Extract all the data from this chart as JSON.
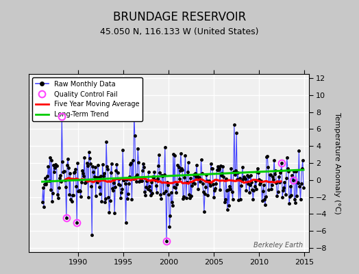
{
  "title": "BRUNDAGE RESERVOIR",
  "subtitle": "45.050 N, 116.133 W (United States)",
  "ylabel": "Temperature Anomaly (°C)",
  "watermark": "Berkeley Earth",
  "ylim": [
    -8.5,
    12.5
  ],
  "yticks": [
    -8,
    -6,
    -4,
    -2,
    0,
    2,
    4,
    6,
    8,
    10,
    12
  ],
  "xlim": [
    1984.5,
    2015.5
  ],
  "xticks": [
    1990,
    1995,
    2000,
    2005,
    2010,
    2015
  ],
  "raw_color": "#4444ff",
  "ma_color": "#ff0000",
  "trend_color": "#00cc00",
  "qc_color": "#ff44ff",
  "plot_bg": "#f0f0f0",
  "fig_bg": "#c8c8c8",
  "title_fontsize": 12,
  "subtitle_fontsize": 9,
  "start_year": 1986,
  "end_year": 2014
}
